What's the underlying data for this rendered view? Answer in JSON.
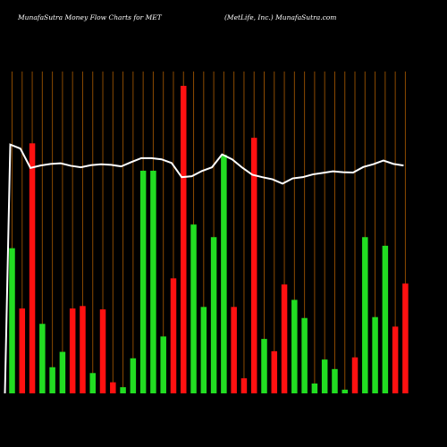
{
  "header": {
    "left": "MunafaSutra  Money Flow  Charts for MET",
    "right": "(MetLife,  Inc.) MunafaSutra.com"
  },
  "colors": {
    "background": "#000000",
    "grid": "#8b4a00",
    "up": "#22dd22",
    "down": "#ff1111",
    "line": "#ffffff",
    "text": "#ffffff"
  },
  "chart_data": {
    "type": "bar",
    "grid": "vertical",
    "categories": [
      "",
      "",
      "",
      "",
      "",
      "",
      "",
      "",
      "",
      "",
      "",
      "",
      "",
      "",
      "",
      "",
      "",
      "",
      "",
      "",
      "",
      "",
      "",
      "",
      "",
      "",
      "",
      "",
      "",
      "",
      "",
      "",
      "",
      "",
      "",
      "",
      "",
      "",
      "",
      ""
    ],
    "values": [
      47.2,
      27.6,
      81.3,
      22.6,
      8.5,
      13.5,
      27.6,
      28.4,
      6.6,
      27.3,
      3.6,
      2.0,
      11.4,
      72.4,
      72.4,
      18.5,
      37.4,
      100,
      54.9,
      28.1,
      50.8,
      77.6,
      28.1,
      4.9,
      83.1,
      17.7,
      13.7,
      35.4,
      30.4,
      24.5,
      3.2,
      11.0,
      7.9,
      1.2,
      11.7,
      50.8,
      24.8,
      48.0,
      21.7,
      35.7
    ],
    "direction": [
      "up",
      "down",
      "down",
      "up",
      "up",
      "up",
      "down",
      "down",
      "up",
      "down",
      "down",
      "up",
      "up",
      "up",
      "up",
      "up",
      "down",
      "down",
      "up",
      "up",
      "up",
      "up",
      "down",
      "down",
      "down",
      "up",
      "down",
      "down",
      "up",
      "up",
      "up",
      "up",
      "up",
      "up",
      "down",
      "up",
      "up",
      "up",
      "down",
      "down"
    ],
    "line": [
      80.9,
      79.6,
      73.3,
      74.1,
      74.6,
      74.8,
      74.0,
      73.5,
      74.2,
      74.5,
      74.3,
      73.8,
      75.2,
      76.5,
      76.5,
      76.1,
      74.9,
      70.3,
      70.6,
      72.3,
      73.5,
      77.7,
      76.1,
      73.4,
      71.1,
      70.3,
      69.6,
      68.2,
      69.9,
      70.3,
      71.2,
      71.7,
      72.2,
      71.9,
      71.8,
      73.6,
      74.5,
      75.7,
      74.6,
      74.1
    ],
    "ylim": [
      0,
      100
    ]
  }
}
